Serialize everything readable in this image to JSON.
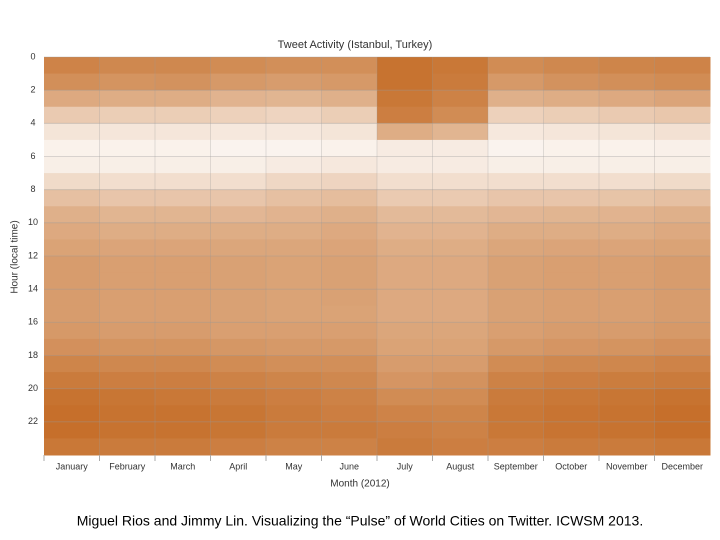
{
  "chart_data": {
    "type": "heatmap",
    "title": "Tweet Activity (Istanbul, Turkey)",
    "x_label": "Month (2012)",
    "y_label": "Hour (local time)",
    "categories": [
      "January",
      "February",
      "March",
      "April",
      "May",
      "June",
      "July",
      "August",
      "September",
      "October",
      "November",
      "December"
    ],
    "y": [
      0,
      1,
      2,
      3,
      4,
      5,
      6,
      7,
      8,
      9,
      10,
      11,
      12,
      13,
      14,
      15,
      16,
      17,
      18,
      19,
      20,
      21,
      22,
      23
    ],
    "ylim": [
      0,
      24
    ],
    "yticks": [
      0,
      2,
      4,
      6,
      8,
      10,
      12,
      14,
      16,
      18,
      20,
      22
    ],
    "grid": true,
    "color_low": "#ffffff",
    "color_high": "#bd5a0b",
    "vlim": [
      0,
      1
    ],
    "values": [
      [
        0.75,
        0.72,
        0.72,
        0.7,
        0.68,
        0.68,
        0.85,
        0.82,
        0.7,
        0.72,
        0.74,
        0.75
      ],
      [
        0.68,
        0.65,
        0.66,
        0.62,
        0.6,
        0.62,
        0.85,
        0.8,
        0.62,
        0.66,
        0.68,
        0.7
      ],
      [
        0.52,
        0.5,
        0.5,
        0.46,
        0.45,
        0.48,
        0.82,
        0.76,
        0.48,
        0.5,
        0.52,
        0.55
      ],
      [
        0.32,
        0.3,
        0.3,
        0.28,
        0.26,
        0.3,
        0.78,
        0.7,
        0.28,
        0.3,
        0.32,
        0.34
      ],
      [
        0.16,
        0.15,
        0.15,
        0.14,
        0.14,
        0.16,
        0.5,
        0.45,
        0.14,
        0.15,
        0.16,
        0.18
      ],
      [
        0.08,
        0.08,
        0.08,
        0.07,
        0.07,
        0.08,
        0.12,
        0.12,
        0.07,
        0.08,
        0.08,
        0.09
      ],
      [
        0.1,
        0.1,
        0.1,
        0.1,
        0.12,
        0.14,
        0.12,
        0.12,
        0.1,
        0.1,
        0.1,
        0.1
      ],
      [
        0.22,
        0.2,
        0.2,
        0.2,
        0.24,
        0.26,
        0.2,
        0.2,
        0.2,
        0.2,
        0.2,
        0.22
      ],
      [
        0.38,
        0.35,
        0.35,
        0.35,
        0.38,
        0.4,
        0.32,
        0.32,
        0.35,
        0.35,
        0.36,
        0.38
      ],
      [
        0.48,
        0.45,
        0.45,
        0.44,
        0.46,
        0.48,
        0.42,
        0.42,
        0.44,
        0.45,
        0.46,
        0.48
      ],
      [
        0.52,
        0.5,
        0.5,
        0.5,
        0.5,
        0.52,
        0.46,
        0.46,
        0.5,
        0.5,
        0.5,
        0.52
      ],
      [
        0.56,
        0.55,
        0.55,
        0.54,
        0.54,
        0.55,
        0.5,
        0.5,
        0.54,
        0.55,
        0.55,
        0.56
      ],
      [
        0.6,
        0.58,
        0.58,
        0.57,
        0.56,
        0.57,
        0.52,
        0.52,
        0.57,
        0.58,
        0.58,
        0.6
      ],
      [
        0.6,
        0.58,
        0.58,
        0.57,
        0.56,
        0.57,
        0.52,
        0.52,
        0.57,
        0.58,
        0.58,
        0.6
      ],
      [
        0.6,
        0.58,
        0.58,
        0.57,
        0.56,
        0.57,
        0.52,
        0.52,
        0.57,
        0.58,
        0.58,
        0.6
      ],
      [
        0.6,
        0.58,
        0.58,
        0.57,
        0.56,
        0.56,
        0.52,
        0.52,
        0.57,
        0.58,
        0.58,
        0.6
      ],
      [
        0.62,
        0.6,
        0.6,
        0.58,
        0.58,
        0.58,
        0.54,
        0.54,
        0.58,
        0.6,
        0.6,
        0.62
      ],
      [
        0.67,
        0.65,
        0.65,
        0.63,
        0.62,
        0.62,
        0.56,
        0.56,
        0.62,
        0.64,
        0.65,
        0.67
      ],
      [
        0.74,
        0.72,
        0.72,
        0.7,
        0.68,
        0.68,
        0.6,
        0.6,
        0.7,
        0.72,
        0.73,
        0.75
      ],
      [
        0.8,
        0.78,
        0.78,
        0.76,
        0.74,
        0.72,
        0.64,
        0.66,
        0.76,
        0.78,
        0.79,
        0.8
      ],
      [
        0.85,
        0.83,
        0.82,
        0.8,
        0.78,
        0.76,
        0.7,
        0.7,
        0.8,
        0.82,
        0.83,
        0.85
      ],
      [
        0.87,
        0.85,
        0.85,
        0.83,
        0.8,
        0.78,
        0.75,
        0.74,
        0.82,
        0.84,
        0.85,
        0.87
      ],
      [
        0.87,
        0.85,
        0.85,
        0.83,
        0.8,
        0.8,
        0.78,
        0.76,
        0.82,
        0.84,
        0.85,
        0.87
      ],
      [
        0.82,
        0.8,
        0.8,
        0.78,
        0.76,
        0.76,
        0.8,
        0.78,
        0.78,
        0.8,
        0.8,
        0.82
      ]
    ]
  },
  "caption": "Miguel Rios and Jimmy Lin. Visualizing the “Pulse” of World Cities on Twitter. ICWSM 2013."
}
